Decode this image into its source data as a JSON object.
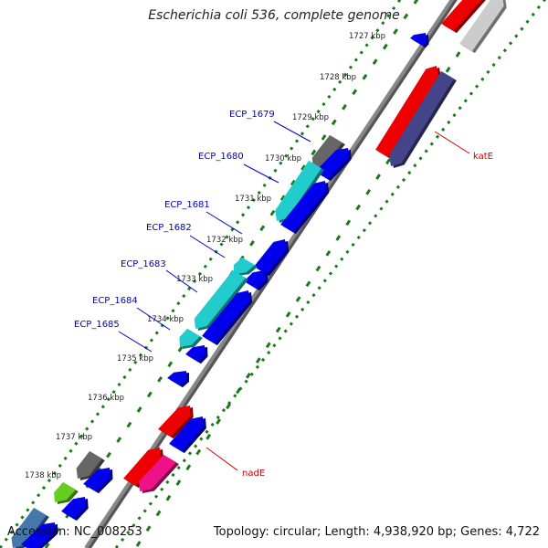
{
  "title": "Escherichia coli 536, complete genome",
  "footer": {
    "accession": "Accession: NC_008253",
    "summary": "Topology: circular; Length: 4,938,920 bp; Genes: 4,722"
  },
  "ticks": [
    "1727 kbp",
    "1728 kbp",
    "1729 kbp",
    "1730 kbp",
    "1731 kbp",
    "1732 kbp",
    "1733 kbp",
    "1734 kbp",
    "1735 kbp",
    "1736 kbp",
    "1737 kbp",
    "1738 kbp"
  ],
  "gene_labels": [
    {
      "name": "ECP_1679",
      "color": "#0000cc"
    },
    {
      "name": "ECP_1680",
      "color": "#0000cc"
    },
    {
      "name": "ECP_1681",
      "color": "#0000cc"
    },
    {
      "name": "ECP_1682",
      "color": "#0000cc"
    },
    {
      "name": "ECP_1683",
      "color": "#0000cc"
    },
    {
      "name": "ECP_1684",
      "color": "#0000cc"
    },
    {
      "name": "ECP_1685",
      "color": "#0000cc"
    },
    {
      "name": "katE",
      "color": "#cc0000"
    },
    {
      "name": "nadE",
      "color": "#cc0000"
    }
  ],
  "colors": {
    "backbone": "#888888",
    "dots": "#1a7a1a",
    "blue": "#0000ee",
    "cyan": "#22cccc",
    "red": "#ee0000",
    "grey": "#666666",
    "lightgrey": "#cccccc",
    "navy": "#44448a",
    "magenta": "#ee1188",
    "green": "#66cc22",
    "steel": "#4477aa"
  }
}
